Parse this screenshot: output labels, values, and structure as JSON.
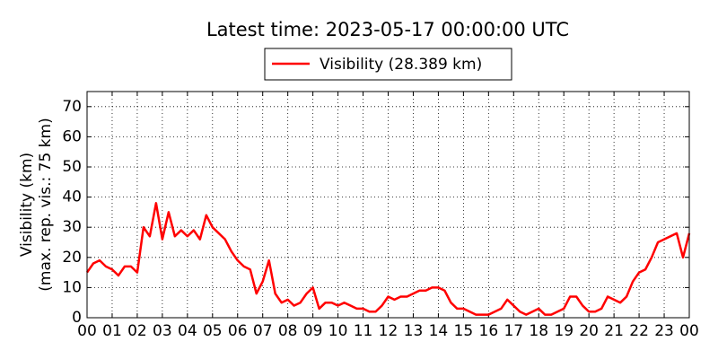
{
  "chart_data": {
    "type": "line",
    "title": "Latest time: 2023-05-17 00:00:00 UTC",
    "y_label": [
      "Visibility (km)",
      "(max. rep. vis.: 75 km)"
    ],
    "x": [
      0,
      0.25,
      0.5,
      0.75,
      1,
      1.25,
      1.5,
      1.75,
      2,
      2.25,
      2.5,
      2.75,
      3,
      3.25,
      3.5,
      3.75,
      4,
      4.25,
      4.5,
      4.75,
      5,
      5.25,
      5.5,
      5.75,
      6,
      6.25,
      6.5,
      6.75,
      7,
      7.25,
      7.5,
      7.75,
      8,
      8.25,
      8.5,
      8.75,
      9,
      9.25,
      9.5,
      9.75,
      10,
      10.25,
      10.5,
      10.75,
      11,
      11.25,
      11.5,
      11.75,
      12,
      12.25,
      12.5,
      12.75,
      13,
      13.25,
      13.5,
      13.75,
      14,
      14.25,
      14.5,
      14.75,
      15,
      15.25,
      15.5,
      15.75,
      16,
      16.25,
      16.5,
      16.75,
      17,
      17.25,
      17.5,
      17.75,
      18,
      18.25,
      18.5,
      18.75,
      19,
      19.25,
      19.5,
      19.75,
      20,
      20.25,
      20.5,
      20.75,
      21,
      21.25,
      21.5,
      21.75,
      22,
      22.25,
      22.5,
      22.75,
      23,
      23.25,
      23.5,
      23.75,
      24
    ],
    "series": [
      {
        "name": "Visibility (28.389 km)",
        "color": "#ff0000",
        "values": [
          15,
          18,
          19,
          17,
          16,
          14,
          17,
          17,
          15,
          30,
          27,
          38,
          26,
          35,
          27,
          29,
          27,
          29,
          26,
          34,
          30,
          28,
          26,
          22,
          19,
          17,
          16,
          8,
          12,
          19,
          8,
          5,
          6,
          4,
          5,
          8,
          10,
          3,
          5,
          5,
          4,
          5,
          4,
          3,
          3,
          2,
          2,
          4,
          7,
          6,
          7,
          7,
          8,
          9,
          9,
          10,
          10,
          9,
          5,
          3,
          3,
          2,
          1,
          1,
          1,
          2,
          3,
          6,
          4,
          2,
          1,
          2,
          3,
          1,
          1,
          2,
          3,
          7,
          7,
          4,
          2,
          2,
          3,
          7,
          6,
          5,
          7,
          12,
          15,
          16,
          20,
          25,
          26,
          27,
          28,
          20,
          28
        ]
      }
    ],
    "xlim": [
      0,
      24
    ],
    "ylim": [
      0,
      75
    ],
    "xticks": [
      {
        "value": 0,
        "label": "00"
      },
      {
        "value": 1,
        "label": "01"
      },
      {
        "value": 2,
        "label": "02"
      },
      {
        "value": 3,
        "label": "03"
      },
      {
        "value": 4,
        "label": "04"
      },
      {
        "value": 5,
        "label": "05"
      },
      {
        "value": 6,
        "label": "06"
      },
      {
        "value": 7,
        "label": "07"
      },
      {
        "value": 8,
        "label": "08"
      },
      {
        "value": 9,
        "label": "09"
      },
      {
        "value": 10,
        "label": "10"
      },
      {
        "value": 11,
        "label": "11"
      },
      {
        "value": 12,
        "label": "12"
      },
      {
        "value": 13,
        "label": "13"
      },
      {
        "value": 14,
        "label": "14"
      },
      {
        "value": 15,
        "label": "15"
      },
      {
        "value": 16,
        "label": "16"
      },
      {
        "value": 17,
        "label": "17"
      },
      {
        "value": 18,
        "label": "18"
      },
      {
        "value": 19,
        "label": "19"
      },
      {
        "value": 20,
        "label": "20"
      },
      {
        "value": 21,
        "label": "21"
      },
      {
        "value": 22,
        "label": "22"
      },
      {
        "value": 23,
        "label": "23"
      },
      {
        "value": 24,
        "label": "00"
      }
    ],
    "yticks": [
      0,
      10,
      20,
      30,
      40,
      50,
      60,
      70
    ],
    "grid": true
  }
}
